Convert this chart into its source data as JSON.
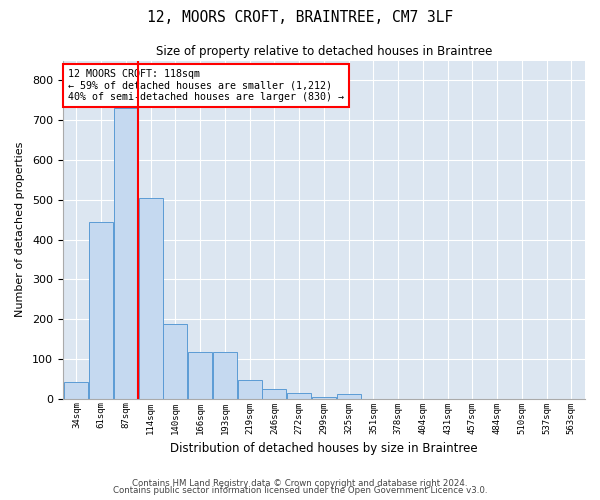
{
  "title": "12, MOORS CROFT, BRAINTREE, CM7 3LF",
  "subtitle": "Size of property relative to detached houses in Braintree",
  "xlabel": "Distribution of detached houses by size in Braintree",
  "ylabel": "Number of detached properties",
  "bar_color": "#c5d9f0",
  "bar_edge_color": "#5b9bd5",
  "background_color": "#dce6f1",
  "grid_color": "#ffffff",
  "fig_bg_color": "#ffffff",
  "categories": [
    "34sqm",
    "61sqm",
    "87sqm",
    "114sqm",
    "140sqm",
    "166sqm",
    "193sqm",
    "219sqm",
    "246sqm",
    "272sqm",
    "299sqm",
    "325sqm",
    "351sqm",
    "378sqm",
    "404sqm",
    "431sqm",
    "457sqm",
    "484sqm",
    "510sqm",
    "537sqm",
    "563sqm"
  ],
  "values": [
    42,
    443,
    730,
    505,
    188,
    117,
    117,
    47,
    25,
    15,
    5,
    12,
    0,
    0,
    0,
    0,
    0,
    0,
    0,
    0,
    0
  ],
  "red_line_bin": 3,
  "annotation_text": "12 MOORS CROFT: 118sqm\n← 59% of detached houses are smaller (1,212)\n40% of semi-detached houses are larger (830) →",
  "ylim": [
    0,
    850
  ],
  "yticks": [
    0,
    100,
    200,
    300,
    400,
    500,
    600,
    700,
    800
  ],
  "footer1": "Contains HM Land Registry data © Crown copyright and database right 2024.",
  "footer2": "Contains public sector information licensed under the Open Government Licence v3.0."
}
